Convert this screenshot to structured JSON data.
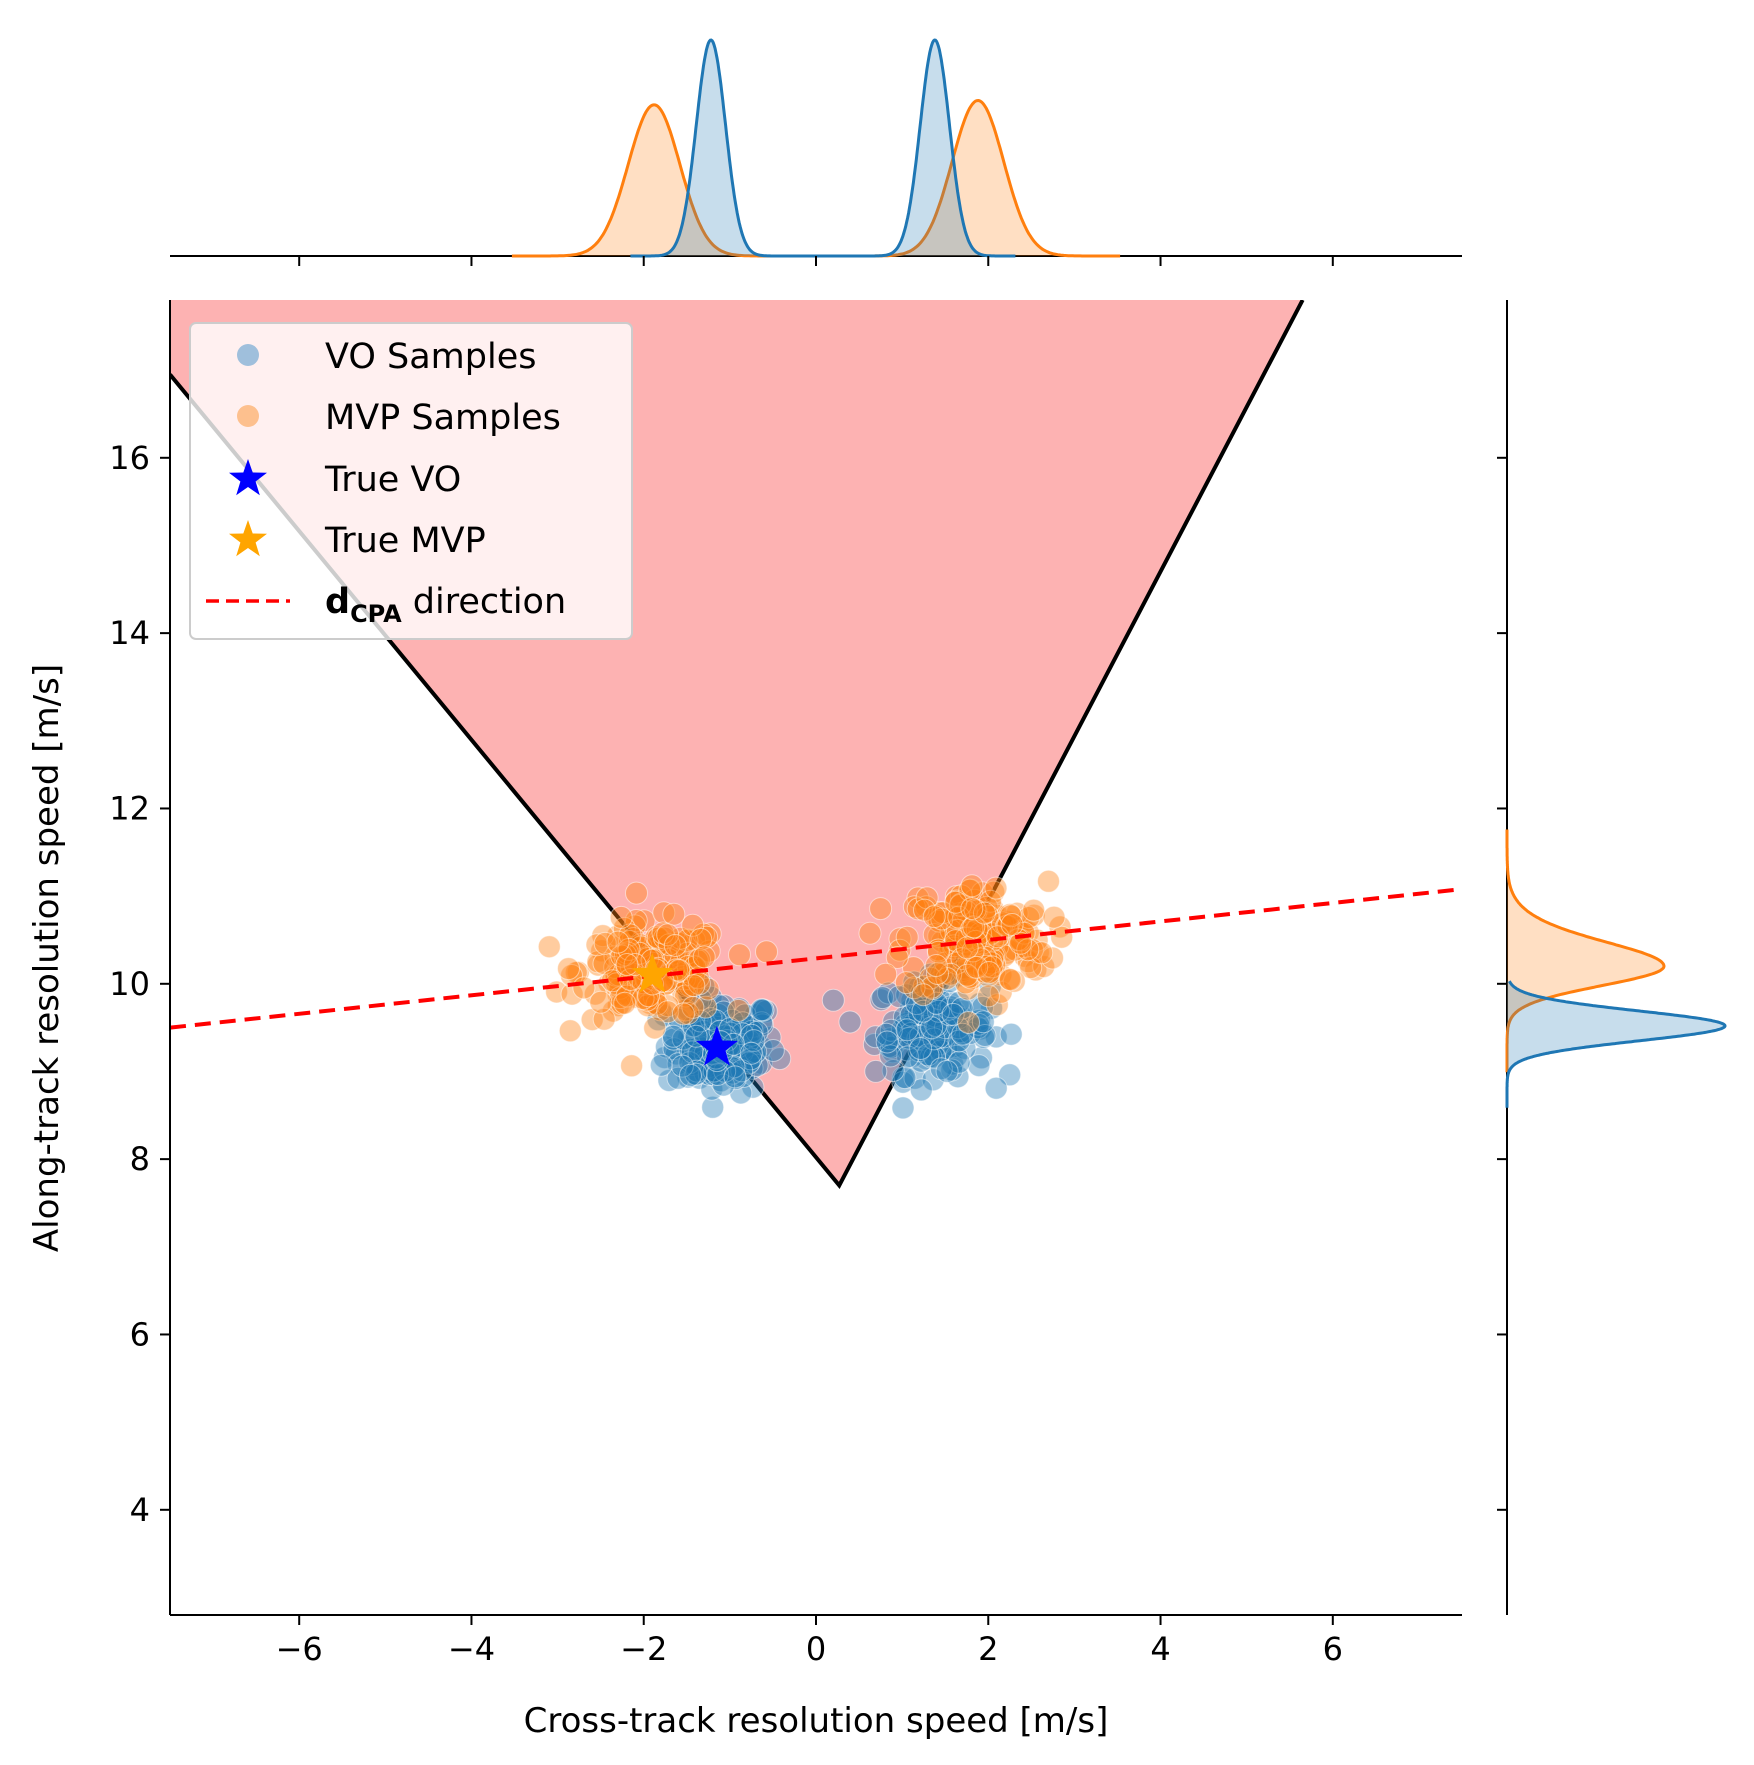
{
  "chart_data": {
    "type": "scatter",
    "xlabel": "Cross-track resolution speed [m/s]",
    "ylabel": "Along-track resolution speed [m/s]",
    "xlim": [
      -7.5,
      7.5
    ],
    "ylim": [
      2.8,
      17.8
    ],
    "x_ticks": [
      -6,
      -4,
      -2,
      0,
      2,
      4,
      6
    ],
    "x_tick_labels": [
      "−6",
      "−4",
      "−2",
      "0",
      "2",
      "4",
      "6"
    ],
    "y_ticks": [
      4,
      6,
      8,
      10,
      12,
      14,
      16
    ],
    "y_tick_labels": [
      "4",
      "6",
      "8",
      "10",
      "12",
      "14",
      "16"
    ],
    "grid": false,
    "legend_position": "upper-left",
    "velocity_obstacle": {
      "apex": [
        0.27,
        7.7
      ],
      "left_edge_top": [
        -7.5,
        16.95
      ],
      "right_edge_top": [
        5.65,
        17.8
      ],
      "fill_color": "#fdb2b2",
      "edge_color": "#000000"
    },
    "dcpa_line": {
      "start": [
        -7.5,
        9.5
      ],
      "end": [
        7.5,
        11.08
      ],
      "color": "#ff0000"
    },
    "clusters": [
      {
        "series": "VO Samples",
        "center": [
          -1.1,
          9.3
        ],
        "spread": [
          0.32,
          0.27
        ],
        "count": 170
      },
      {
        "series": "VO Samples",
        "center": [
          1.35,
          9.5
        ],
        "spread": [
          0.33,
          0.27
        ],
        "count": 170
      },
      {
        "series": "MVP Samples",
        "center": [
          -1.9,
          10.15
        ],
        "spread": [
          0.42,
          0.27
        ],
        "count": 200
      },
      {
        "series": "MVP Samples",
        "center": [
          1.85,
          10.5
        ],
        "spread": [
          0.42,
          0.33
        ],
        "count": 200
      }
    ],
    "true_points": [
      {
        "name": "True VO",
        "x": -1.15,
        "y": 9.27,
        "color": "#0000ff"
      },
      {
        "name": "True MVP",
        "x": -1.9,
        "y": 10.1,
        "color": "#ffa500"
      }
    ],
    "marginal_x": {
      "VO Samples": [
        {
          "mean": -1.22,
          "sd": 0.17,
          "peak": 1.0
        },
        {
          "mean": 1.38,
          "sd": 0.17,
          "peak": 1.0
        }
      ],
      "MVP Samples": [
        {
          "mean": -1.88,
          "sd": 0.3,
          "peak": 0.7
        },
        {
          "mean": 1.88,
          "sd": 0.3,
          "peak": 0.72
        }
      ]
    },
    "marginal_y": {
      "VO Samples": [
        {
          "mean": 9.52,
          "sd": 0.17,
          "peak": 1.0
        }
      ],
      "MVP Samples": [
        {
          "mean": 10.2,
          "sd": 0.22,
          "peak": 0.72,
          "tail_to": 11.1
        }
      ]
    },
    "series": [
      {
        "name": "VO Samples",
        "color": "#1f77b4"
      },
      {
        "name": "MVP Samples",
        "color": "#ff7f0e"
      }
    ],
    "legend": [
      {
        "label": "VO Samples",
        "marker": "dot",
        "color": "#9fbfdc"
      },
      {
        "label": "MVP Samples",
        "marker": "dot",
        "color": "#fdc08e"
      },
      {
        "label": "True VO",
        "marker": "star",
        "color": "#0000ff"
      },
      {
        "label": "True MVP",
        "marker": "star",
        "color": "#ffa500"
      },
      {
        "label_main": "d",
        "label_sub": "CPA",
        "label_rest": " direction",
        "marker": "dashed-line",
        "color": "#ff0000"
      }
    ]
  }
}
